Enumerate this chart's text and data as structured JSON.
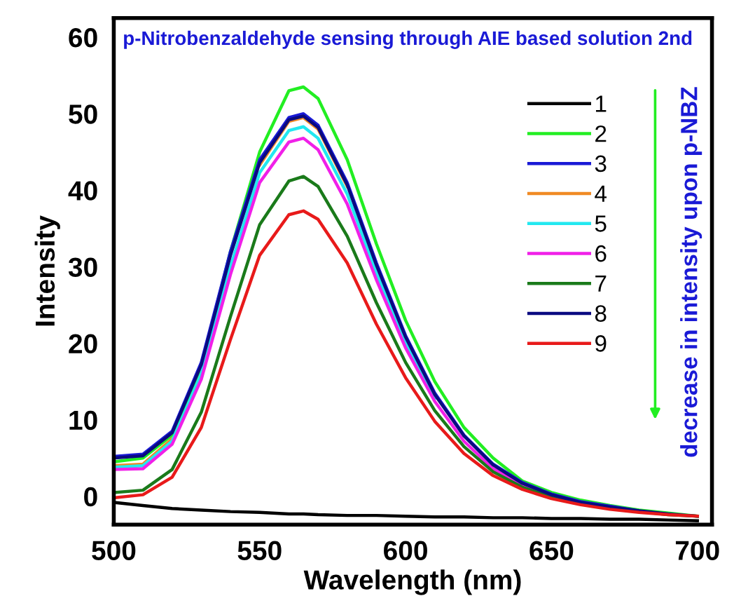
{
  "chart_data": {
    "type": "line",
    "title": "p-Nitrobenzaldehyde sensing through AIE based solution 2nd",
    "xlabel": "Wavelength (nm)",
    "ylabel": "Intensity",
    "x": [
      500,
      510,
      520,
      530,
      540,
      550,
      560,
      565,
      570,
      580,
      590,
      600,
      610,
      620,
      630,
      640,
      650,
      660,
      670,
      680,
      690,
      700
    ],
    "series": [
      {
        "name": "1",
        "color": "#000000",
        "values": [
          -0.8,
          -1.2,
          -1.6,
          -1.8,
          -2.0,
          -2.1,
          -2.3,
          -2.3,
          -2.4,
          -2.5,
          -2.5,
          -2.6,
          -2.7,
          -2.7,
          -2.8,
          -2.8,
          -2.9,
          -2.9,
          -3.0,
          -3.0,
          -3.1,
          -3.2
        ]
      },
      {
        "name": "2",
        "color": "#22ee22",
        "values": [
          4.5,
          5,
          8,
          17,
          32,
          45,
          53,
          53.5,
          52,
          44,
          33,
          23,
          15,
          9,
          5,
          2,
          0.5,
          -0.5,
          -1.2,
          -1.8,
          -2.2,
          -2.6
        ]
      },
      {
        "name": "3",
        "color": "#1a1ad6",
        "values": [
          5.2,
          5.5,
          8.5,
          17.5,
          32,
          44,
          49.5,
          50,
          48.5,
          41,
          30.5,
          21,
          13.5,
          8,
          4.2,
          1.8,
          0.3,
          -0.7,
          -1.3,
          -1.9,
          null,
          null
        ]
      },
      {
        "name": "4",
        "color": "#f08a24",
        "values": [
          4.0,
          4.2,
          7.5,
          null,
          null,
          43.3,
          49,
          49.5,
          48,
          40.5,
          null,
          null,
          null,
          null,
          null,
          null,
          null,
          null,
          null,
          null,
          null,
          null
        ]
      },
      {
        "name": "5",
        "color": "#22e8f0",
        "values": [
          3.8,
          4.0,
          7.2,
          16,
          30,
          42.3,
          47.8,
          48.3,
          46.8,
          39.5,
          29.2,
          20,
          12.8,
          null,
          null,
          null,
          null,
          null,
          null,
          null,
          null,
          null
        ]
      },
      {
        "name": "6",
        "color": "#f020e8",
        "values": [
          3.5,
          3.6,
          6.8,
          15.3,
          29,
          41,
          46.3,
          46.8,
          45.3,
          38.2,
          28.3,
          19.4,
          12.4,
          7.2,
          3.6,
          1.4,
          0,
          null,
          null,
          null,
          null,
          null
        ]
      },
      {
        "name": "7",
        "color": "#1a7a1a",
        "values": [
          0.5,
          0.8,
          3.5,
          11,
          23.5,
          35.5,
          41.2,
          41.8,
          40.5,
          34,
          25.3,
          17.5,
          11.2,
          6.5,
          3.2,
          1.2,
          -0.1,
          -1,
          -1.6,
          -2,
          -2.4,
          -2.6
        ]
      },
      {
        "name": "8",
        "color": "#0a0a80",
        "values": [
          5.0,
          5.3,
          8.3,
          17.2,
          31.5,
          43.6,
          49.2,
          49.7,
          48.2,
          40.7,
          30.2,
          20.8,
          13.3,
          7.9,
          4.1,
          1.7,
          0.2,
          -0.8,
          -1.4,
          -1.9,
          -2.3,
          -2.6
        ]
      },
      {
        "name": "9",
        "color": "#e81a1a",
        "values": [
          -0.2,
          0.2,
          2.5,
          9,
          20.5,
          31.5,
          36.8,
          37.3,
          36.2,
          30.5,
          22.5,
          15.5,
          9.8,
          5.6,
          2.7,
          0.9,
          -0.3,
          -1.1,
          -1.7,
          -2.1,
          -2.4,
          -2.6
        ]
      }
    ],
    "xlim": [
      500,
      705
    ],
    "ylim": [
      -3.7,
      62.5
    ],
    "xticks": [
      500,
      550,
      600,
      650,
      700
    ],
    "yticks": [
      0,
      10,
      20,
      30,
      40,
      50,
      60
    ],
    "annotations": [
      "decrease in intensity upon p-NBZ"
    ],
    "legend": "top right",
    "grid": false,
    "marker": "none",
    "line_style": "solid"
  }
}
